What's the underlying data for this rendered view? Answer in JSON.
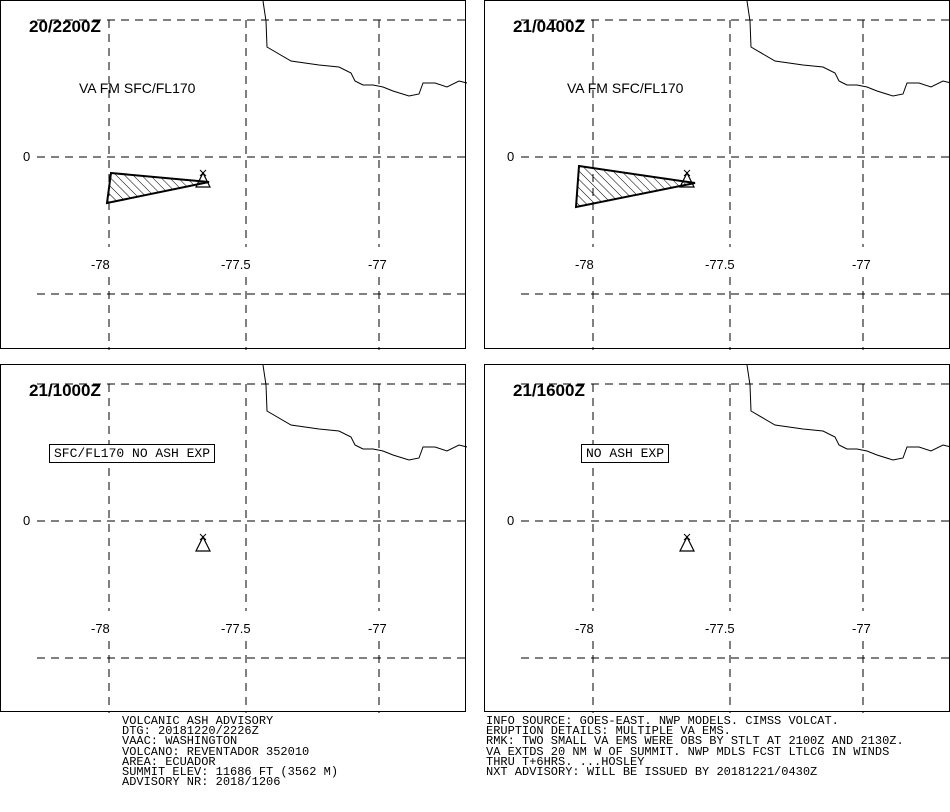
{
  "panels": [
    {
      "time": "20/2200Z",
      "label": "VA FM SFC/FL170",
      "label_style": "plain",
      "cloud": "a"
    },
    {
      "time": "21/0400Z",
      "label": "VA FM SFC/FL170",
      "label_style": "plain",
      "cloud": "b"
    },
    {
      "time": "21/1000Z",
      "label": "SFC/FL170 NO ASH EXP",
      "label_style": "boxed",
      "cloud": ""
    },
    {
      "time": "21/1600Z",
      "label": "NO ASH EXP",
      "label_style": "boxed",
      "cloud": ""
    }
  ],
  "axes": {
    "lat_label": "0",
    "lon_labels": [
      "-78",
      "-77.5",
      "-77"
    ]
  },
  "volcano_icon": "volcano-triangle-icon",
  "advisory_left": [
    "VOLCANIC ASH ADVISORY",
    "DTG: 20181220/2226Z",
    "VAAC: WASHINGTON",
    "VOLCANO: REVENTADOR 352010",
    "AREA: ECUADOR",
    "SUMMIT ELEV: 11686 FT (3562 M)",
    "ADVISORY NR: 2018/1206"
  ],
  "advisory_right": [
    "INFO SOURCE: GOES-EAST. NWP MODELS. CIMSS VOLCAT.",
    "ERUPTION DETAILS: MULTIPLE VA EMS.",
    "RMK: TWO SMALL VA EMS WERE OBS BY STLT AT 2100Z AND 2130Z.",
    "VA EXTDS 20 NM W OF SUMMIT. NWP MDLS FCST LTLCG IN WINDS",
    "THRU T+6HRS. ...HOSLEY",
    "NXT ADVISORY: WILL BE ISSUED BY 20181221/0430Z"
  ]
}
